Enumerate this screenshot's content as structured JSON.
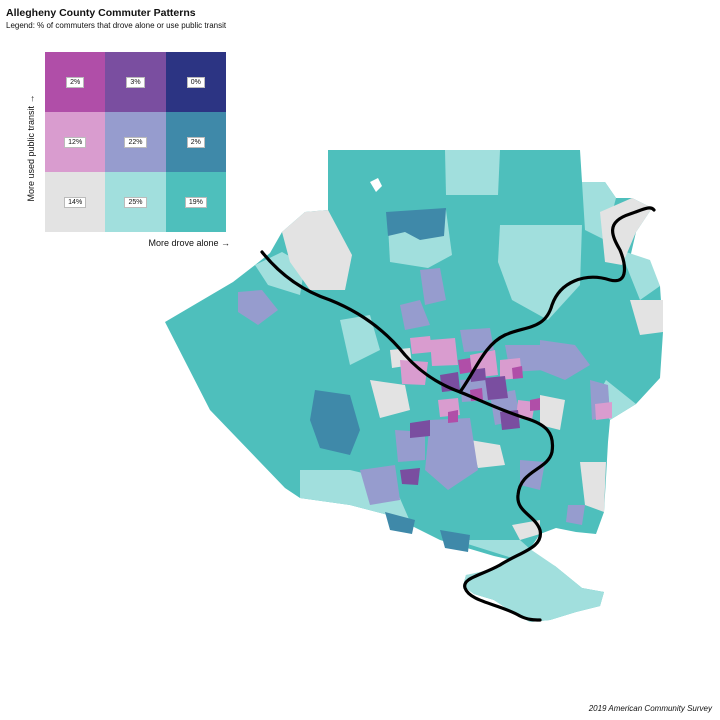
{
  "title": "Allegheny County Commuter Patterns",
  "subtitle": "Legend: % of commuters that drove alone or use public transit",
  "legend": {
    "y_axis_label": "More used public transit →",
    "x_axis_label": "More drove alone →",
    "rows": [
      [
        {
          "label": "2%",
          "color": "#b04ea8"
        },
        {
          "label": "3%",
          "color": "#7a4ea0"
        },
        {
          "label": "0%",
          "color": "#2c3483"
        }
      ],
      [
        {
          "label": "12%",
          "color": "#d99ccf"
        },
        {
          "label": "22%",
          "color": "#969cce"
        },
        {
          "label": "2%",
          "color": "#3f89a9"
        }
      ],
      [
        {
          "label": "14%",
          "color": "#e3e3e3"
        },
        {
          "label": "25%",
          "color": "#a1dfdd"
        },
        {
          "label": "19%",
          "color": "#4ebfbc"
        }
      ]
    ]
  },
  "colors": {
    "river": "#000000",
    "county_base": "#4ebfbc"
  },
  "caption": "2019 American Community Survey"
}
